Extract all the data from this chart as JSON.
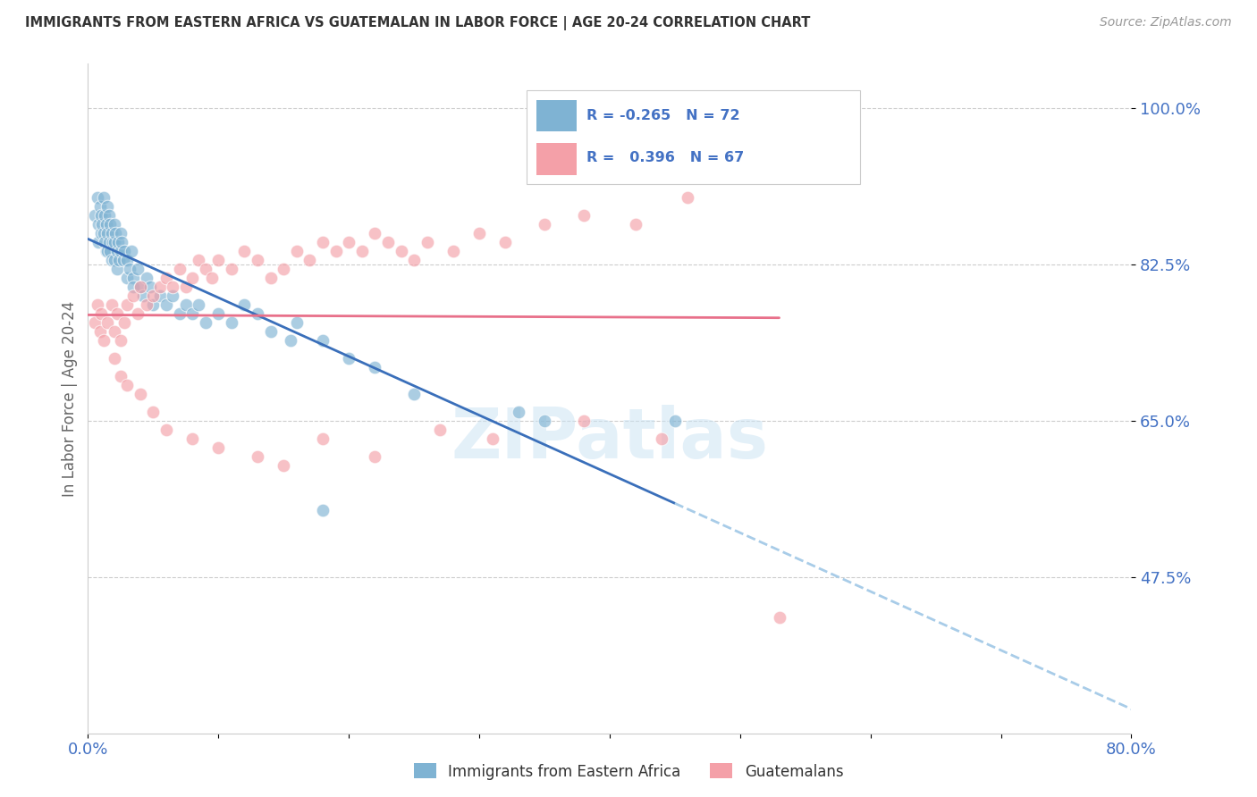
{
  "title": "IMMIGRANTS FROM EASTERN AFRICA VS GUATEMALAN IN LABOR FORCE | AGE 20-24 CORRELATION CHART",
  "source": "Source: ZipAtlas.com",
  "ylabel": "In Labor Force | Age 20-24",
  "xlim": [
    0.0,
    0.8
  ],
  "ylim": [
    0.3,
    1.05
  ],
  "yticks": [
    0.475,
    0.65,
    0.825,
    1.0
  ],
  "ytick_labels": [
    "47.5%",
    "65.0%",
    "82.5%",
    "100.0%"
  ],
  "xticks": [
    0.0,
    0.1,
    0.2,
    0.3,
    0.4,
    0.5,
    0.6,
    0.7,
    0.8
  ],
  "xtick_labels": [
    "0.0%",
    "",
    "",
    "",
    "",
    "",
    "",
    "",
    "80.0%"
  ],
  "blue_R": -0.265,
  "blue_N": 72,
  "pink_R": 0.396,
  "pink_N": 67,
  "blue_color": "#7fb3d3",
  "pink_color": "#f4a0a8",
  "blue_line_color": "#3a6fba",
  "pink_line_color": "#e8708a",
  "blue_dash_color": "#a8cce8",
  "blue_label": "Immigrants from Eastern Africa",
  "pink_label": "Guatemalans",
  "tick_label_color": "#4472c4",
  "legend_R_color": "#4472c4",
  "watermark": "ZIPatlas",
  "blue_scatter_x": [
    0.005,
    0.007,
    0.008,
    0.008,
    0.009,
    0.01,
    0.01,
    0.011,
    0.012,
    0.012,
    0.013,
    0.013,
    0.014,
    0.014,
    0.015,
    0.015,
    0.015,
    0.016,
    0.016,
    0.017,
    0.017,
    0.018,
    0.018,
    0.019,
    0.02,
    0.02,
    0.02,
    0.021,
    0.022,
    0.022,
    0.023,
    0.024,
    0.025,
    0.025,
    0.026,
    0.027,
    0.028,
    0.03,
    0.03,
    0.032,
    0.033,
    0.035,
    0.035,
    0.038,
    0.04,
    0.042,
    0.045,
    0.048,
    0.05,
    0.055,
    0.06,
    0.065,
    0.07,
    0.075,
    0.08,
    0.085,
    0.09,
    0.1,
    0.11,
    0.12,
    0.13,
    0.14,
    0.155,
    0.16,
    0.18,
    0.2,
    0.22,
    0.25,
    0.18,
    0.33,
    0.35,
    0.45
  ],
  "blue_scatter_y": [
    0.88,
    0.9,
    0.87,
    0.85,
    0.89,
    0.88,
    0.86,
    0.87,
    0.9,
    0.86,
    0.88,
    0.85,
    0.87,
    0.84,
    0.89,
    0.86,
    0.84,
    0.88,
    0.85,
    0.87,
    0.84,
    0.86,
    0.83,
    0.85,
    0.87,
    0.85,
    0.83,
    0.86,
    0.84,
    0.82,
    0.85,
    0.83,
    0.86,
    0.84,
    0.85,
    0.83,
    0.84,
    0.83,
    0.81,
    0.82,
    0.84,
    0.81,
    0.8,
    0.82,
    0.8,
    0.79,
    0.81,
    0.8,
    0.78,
    0.79,
    0.78,
    0.79,
    0.77,
    0.78,
    0.77,
    0.78,
    0.76,
    0.77,
    0.76,
    0.78,
    0.77,
    0.75,
    0.74,
    0.76,
    0.74,
    0.72,
    0.71,
    0.68,
    0.55,
    0.66,
    0.65,
    0.65
  ],
  "pink_scatter_x": [
    0.005,
    0.007,
    0.009,
    0.01,
    0.012,
    0.015,
    0.018,
    0.02,
    0.022,
    0.025,
    0.028,
    0.03,
    0.035,
    0.038,
    0.04,
    0.045,
    0.05,
    0.055,
    0.06,
    0.065,
    0.07,
    0.075,
    0.08,
    0.085,
    0.09,
    0.095,
    0.1,
    0.11,
    0.12,
    0.13,
    0.14,
    0.15,
    0.16,
    0.17,
    0.18,
    0.19,
    0.2,
    0.21,
    0.22,
    0.23,
    0.24,
    0.25,
    0.26,
    0.28,
    0.3,
    0.32,
    0.35,
    0.38,
    0.42,
    0.46,
    0.02,
    0.025,
    0.03,
    0.04,
    0.05,
    0.06,
    0.08,
    0.1,
    0.13,
    0.15,
    0.18,
    0.22,
    0.27,
    0.31,
    0.38,
    0.44,
    0.53
  ],
  "pink_scatter_y": [
    0.76,
    0.78,
    0.75,
    0.77,
    0.74,
    0.76,
    0.78,
    0.75,
    0.77,
    0.74,
    0.76,
    0.78,
    0.79,
    0.77,
    0.8,
    0.78,
    0.79,
    0.8,
    0.81,
    0.8,
    0.82,
    0.8,
    0.81,
    0.83,
    0.82,
    0.81,
    0.83,
    0.82,
    0.84,
    0.83,
    0.81,
    0.82,
    0.84,
    0.83,
    0.85,
    0.84,
    0.85,
    0.84,
    0.86,
    0.85,
    0.84,
    0.83,
    0.85,
    0.84,
    0.86,
    0.85,
    0.87,
    0.88,
    0.87,
    0.9,
    0.72,
    0.7,
    0.69,
    0.68,
    0.66,
    0.64,
    0.63,
    0.62,
    0.61,
    0.6,
    0.63,
    0.61,
    0.64,
    0.63,
    0.65,
    0.63,
    0.43
  ]
}
